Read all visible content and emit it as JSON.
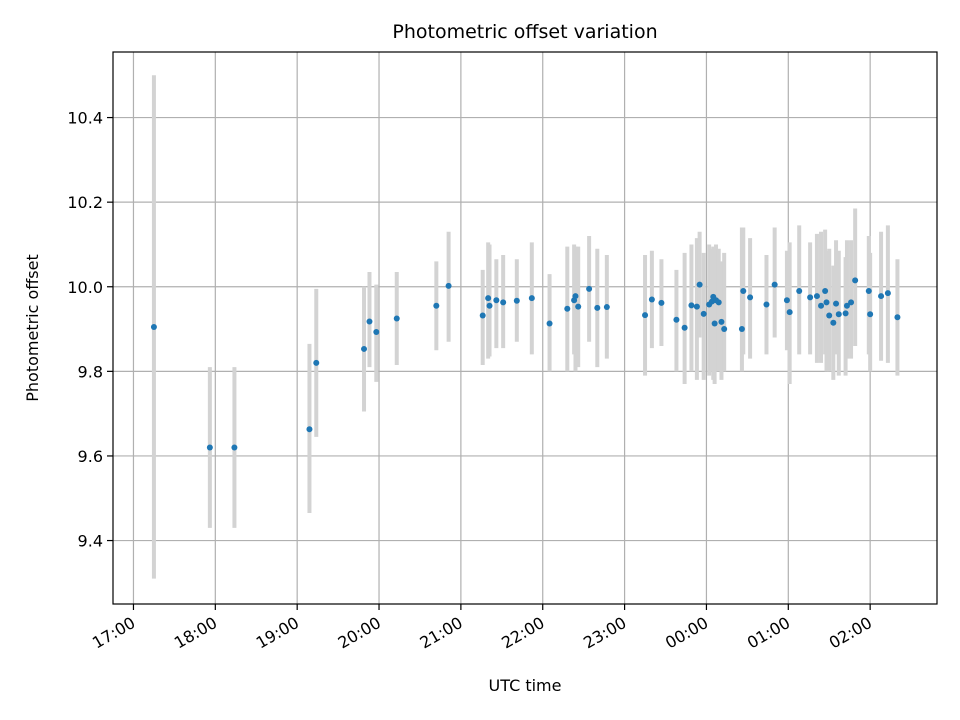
{
  "chart_data": {
    "type": "scatter",
    "title": "Photometric offset variation",
    "xlabel": "UTC time",
    "ylabel": "Photometric offset",
    "x_ticks": [
      "17:00",
      "18:00",
      "19:00",
      "20:00",
      "21:00",
      "22:00",
      "23:00",
      "00:00",
      "01:00",
      "02:00"
    ],
    "y_ticks": [
      "9.4",
      "9.6",
      "9.8",
      "10.0",
      "10.2",
      "10.4"
    ],
    "xlim": [
      "16:45",
      "02:49"
    ],
    "ylim": [
      9.25,
      10.555
    ],
    "grid": true,
    "point_color": "#1f77b4",
    "errorbar_color": "#d3d3d3",
    "series": [
      {
        "x": [
          "17:15",
          "17:56",
          "18:14",
          "19:09",
          "19:14",
          "19:49",
          "19:53",
          "19:58",
          "20:13",
          "20:42",
          "20:51",
          "21:16",
          "21:20",
          "21:21",
          "21:26",
          "21:31",
          "21:41",
          "21:52",
          "22:05",
          "22:18",
          "22:23",
          "22:24",
          "22:26",
          "22:34",
          "22:40",
          "22:47",
          "23:15",
          "23:20",
          "23:27",
          "23:38",
          "23:44",
          "23:49",
          "23:53",
          "23:55",
          "23:58",
          "00:02",
          "00:04",
          "00:05",
          "00:06",
          "00:07",
          "00:09",
          "00:11",
          "00:13",
          "00:26",
          "00:27",
          "00:32",
          "00:44",
          "00:50",
          "00:59",
          "01:01",
          "01:08",
          "01:16",
          "01:21",
          "01:24",
          "01:27",
          "01:28",
          "01:30",
          "01:33",
          "01:35",
          "01:37",
          "01:42",
          "01:43",
          "01:46",
          "01:49",
          "01:59",
          "02:00",
          "02:08",
          "02:13",
          "02:20"
        ],
        "y": [
          9.905,
          9.62,
          9.62,
          9.663,
          9.82,
          9.853,
          9.918,
          9.893,
          9.925,
          9.955,
          10.002,
          9.932,
          9.973,
          9.955,
          9.968,
          9.963,
          9.967,
          9.973,
          9.913,
          9.948,
          9.968,
          9.978,
          9.953,
          9.995,
          9.95,
          9.952,
          9.933,
          9.97,
          9.962,
          9.922,
          9.903,
          9.956,
          9.953,
          10.005,
          9.936,
          9.958,
          9.965,
          9.976,
          9.913,
          9.968,
          9.963,
          9.917,
          9.9,
          9.9,
          9.99,
          9.975,
          9.958,
          10.005,
          9.968,
          9.94,
          9.99,
          9.975,
          9.978,
          9.955,
          9.99,
          9.963,
          9.932,
          9.915,
          9.96,
          9.935,
          9.937,
          9.955,
          9.963,
          10.015,
          9.99,
          9.935,
          9.978,
          9.985,
          9.928
        ],
        "err_low": [
          9.31,
          9.43,
          9.43,
          9.465,
          9.645,
          9.705,
          9.81,
          9.775,
          9.815,
          9.85,
          9.87,
          9.815,
          9.83,
          9.835,
          9.855,
          9.855,
          9.87,
          9.84,
          9.8,
          9.8,
          9.84,
          9.8,
          9.81,
          9.87,
          9.81,
          9.83,
          9.79,
          9.855,
          9.86,
          9.8,
          9.77,
          9.8,
          9.78,
          9.88,
          9.78,
          9.79,
          9.8,
          9.78,
          9.77,
          9.8,
          9.8,
          9.78,
          9.8,
          9.8,
          9.84,
          9.83,
          9.84,
          9.88,
          9.85,
          9.77,
          9.84,
          9.84,
          9.82,
          9.82,
          9.84,
          9.8,
          9.8,
          9.78,
          9.84,
          9.79,
          9.79,
          9.83,
          9.83,
          9.86,
          9.84,
          9.8,
          9.825,
          9.82,
          9.79
        ],
        "err_high": [
          10.5,
          9.81,
          9.81,
          9.865,
          9.995,
          10.0,
          10.035,
          10.005,
          10.035,
          10.06,
          10.13,
          10.04,
          10.105,
          10.1,
          10.065,
          10.075,
          10.065,
          10.105,
          10.03,
          10.095,
          10.1,
          10.095,
          10.095,
          10.12,
          10.09,
          10.075,
          10.075,
          10.085,
          10.065,
          10.04,
          10.08,
          10.1,
          10.115,
          10.13,
          10.08,
          10.1,
          10.09,
          10.095,
          10.085,
          10.1,
          10.09,
          10.06,
          10.08,
          10.14,
          10.14,
          10.115,
          10.075,
          10.14,
          10.085,
          10.105,
          10.145,
          10.105,
          10.125,
          10.13,
          10.135,
          10.085,
          10.09,
          10.05,
          10.11,
          10.085,
          10.07,
          10.11,
          10.11,
          10.185,
          10.12,
          10.08,
          10.13,
          10.145,
          10.065
        ]
      }
    ]
  }
}
